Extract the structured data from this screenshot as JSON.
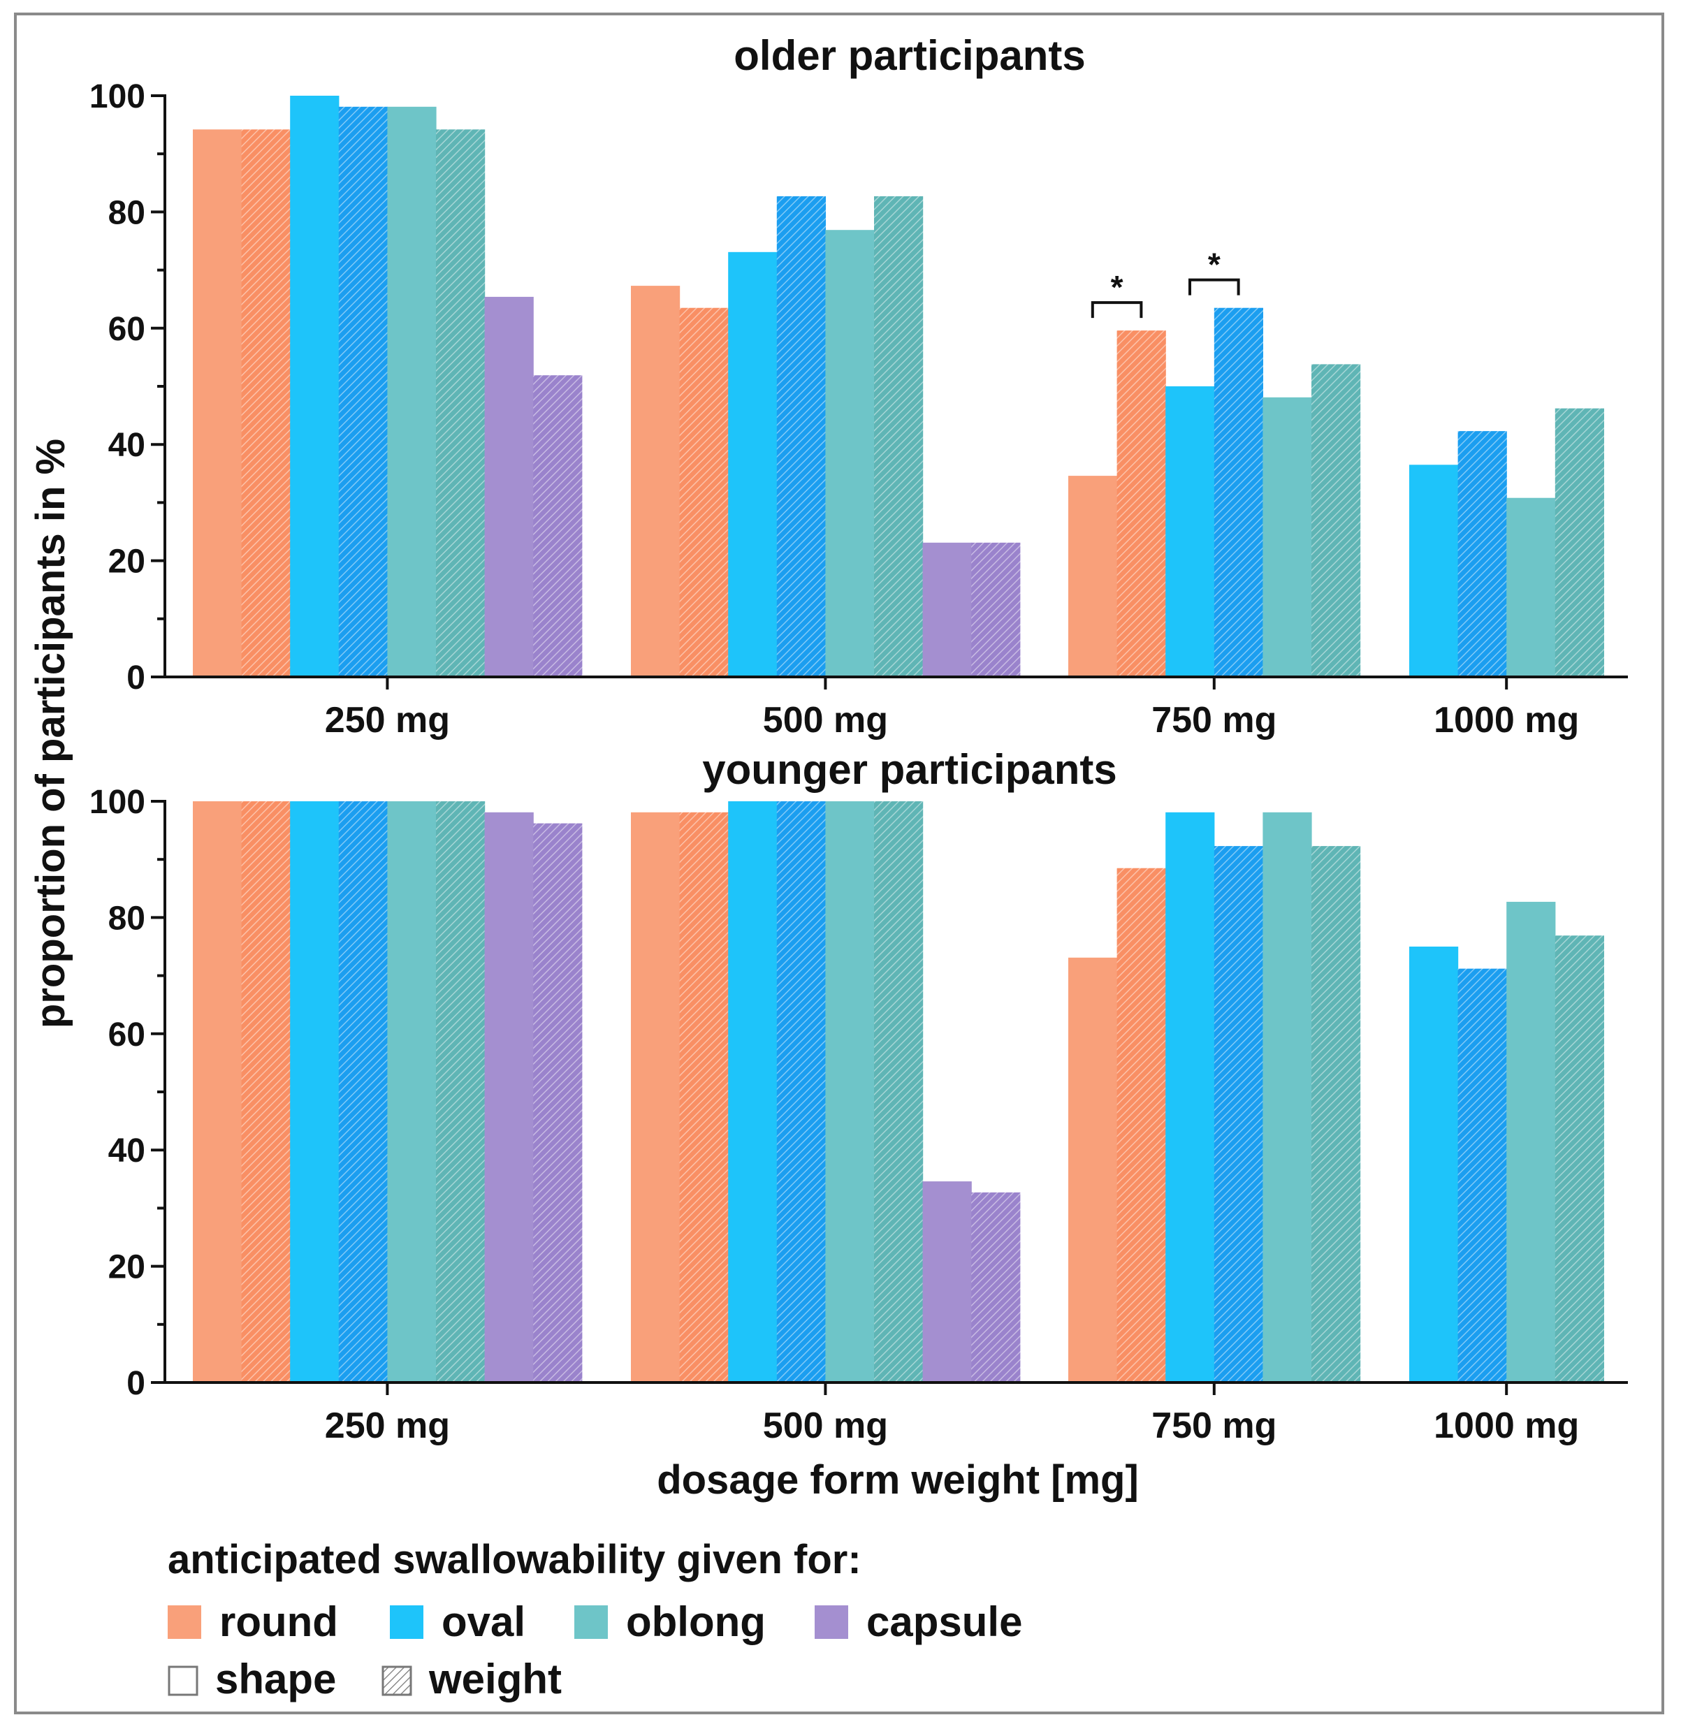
{
  "chart_data": {
    "type": "bar",
    "ylabel": "proportion of participants in %",
    "xlabel": "dosage form weight [mg]",
    "ylim": [
      0,
      100
    ],
    "yticks": [
      0,
      20,
      40,
      60,
      80,
      100
    ],
    "categories": [
      "250 mg",
      "500 mg",
      "750 mg",
      "1000 mg"
    ],
    "colors": {
      "round": "#f9a07a",
      "oval": "#1ec4fa",
      "oblong": "#6ec5c8",
      "capsule": "#a48fd0",
      "round_weight": "#f98f64",
      "oval_weight": "#1b9ef0",
      "oblong_weight": "#5fb5b5",
      "capsule_weight": "#9a83cc"
    },
    "panels": [
      {
        "title": "older participants",
        "groups": [
          {
            "category": "250 mg",
            "bars": [
              {
                "shape": "round",
                "basis": "shape",
                "value": 94.2
              },
              {
                "shape": "round",
                "basis": "weight",
                "value": 94.2
              },
              {
                "shape": "oval",
                "basis": "shape",
                "value": 100
              },
              {
                "shape": "oval",
                "basis": "weight",
                "value": 98.1
              },
              {
                "shape": "oblong",
                "basis": "shape",
                "value": 98.1
              },
              {
                "shape": "oblong",
                "basis": "weight",
                "value": 94.2
              },
              {
                "shape": "capsule",
                "basis": "shape",
                "value": 65.4
              },
              {
                "shape": "capsule",
                "basis": "weight",
                "value": 51.9
              }
            ]
          },
          {
            "category": "500 mg",
            "bars": [
              {
                "shape": "round",
                "basis": "shape",
                "value": 67.3
              },
              {
                "shape": "round",
                "basis": "weight",
                "value": 63.5
              },
              {
                "shape": "oval",
                "basis": "shape",
                "value": 73.1
              },
              {
                "shape": "oval",
                "basis": "weight",
                "value": 82.7
              },
              {
                "shape": "oblong",
                "basis": "shape",
                "value": 76.9
              },
              {
                "shape": "oblong",
                "basis": "weight",
                "value": 82.7
              },
              {
                "shape": "capsule",
                "basis": "shape",
                "value": 23.1
              },
              {
                "shape": "capsule",
                "basis": "weight",
                "value": 23.1
              }
            ]
          },
          {
            "category": "750 mg",
            "bars": [
              {
                "shape": "round",
                "basis": "shape",
                "value": 34.6
              },
              {
                "shape": "round",
                "basis": "weight",
                "value": 59.6
              },
              {
                "shape": "oval",
                "basis": "shape",
                "value": 50.0
              },
              {
                "shape": "oval",
                "basis": "weight",
                "value": 63.5
              },
              {
                "shape": "oblong",
                "basis": "shape",
                "value": 48.1
              },
              {
                "shape": "oblong",
                "basis": "weight",
                "value": 53.8
              }
            ]
          },
          {
            "category": "1000 mg",
            "bars": [
              {
                "shape": "oval",
                "basis": "shape",
                "value": 36.5
              },
              {
                "shape": "oval",
                "basis": "weight",
                "value": 42.3
              },
              {
                "shape": "oblong",
                "basis": "shape",
                "value": 30.8
              },
              {
                "shape": "oblong",
                "basis": "weight",
                "value": 46.2
              }
            ]
          }
        ],
        "annotations": [
          {
            "text": "*",
            "group": "750 mg",
            "from_bar": 0,
            "to_bar": 1
          },
          {
            "text": "*",
            "group": "750 mg",
            "from_bar": 2,
            "to_bar": 3
          }
        ]
      },
      {
        "title": "younger participants",
        "groups": [
          {
            "category": "250 mg",
            "bars": [
              {
                "shape": "round",
                "basis": "shape",
                "value": 100
              },
              {
                "shape": "round",
                "basis": "weight",
                "value": 100
              },
              {
                "shape": "oval",
                "basis": "shape",
                "value": 100
              },
              {
                "shape": "oval",
                "basis": "weight",
                "value": 100
              },
              {
                "shape": "oblong",
                "basis": "shape",
                "value": 100
              },
              {
                "shape": "oblong",
                "basis": "weight",
                "value": 100
              },
              {
                "shape": "capsule",
                "basis": "shape",
                "value": 98.1
              },
              {
                "shape": "capsule",
                "basis": "weight",
                "value": 96.2
              }
            ]
          },
          {
            "category": "500 mg",
            "bars": [
              {
                "shape": "round",
                "basis": "shape",
                "value": 98.1
              },
              {
                "shape": "round",
                "basis": "weight",
                "value": 98.1
              },
              {
                "shape": "oval",
                "basis": "shape",
                "value": 100
              },
              {
                "shape": "oval",
                "basis": "weight",
                "value": 100
              },
              {
                "shape": "oblong",
                "basis": "shape",
                "value": 100
              },
              {
                "shape": "oblong",
                "basis": "weight",
                "value": 100
              },
              {
                "shape": "capsule",
                "basis": "shape",
                "value": 34.6
              },
              {
                "shape": "capsule",
                "basis": "weight",
                "value": 32.7
              }
            ]
          },
          {
            "category": "750 mg",
            "bars": [
              {
                "shape": "round",
                "basis": "shape",
                "value": 73.1
              },
              {
                "shape": "round",
                "basis": "weight",
                "value": 88.5
              },
              {
                "shape": "oval",
                "basis": "shape",
                "value": 98.1
              },
              {
                "shape": "oval",
                "basis": "weight",
                "value": 92.3
              },
              {
                "shape": "oblong",
                "basis": "shape",
                "value": 98.1
              },
              {
                "shape": "oblong",
                "basis": "weight",
                "value": 92.3
              }
            ]
          },
          {
            "category": "1000 mg",
            "bars": [
              {
                "shape": "oval",
                "basis": "shape",
                "value": 75.0
              },
              {
                "shape": "oval",
                "basis": "weight",
                "value": 71.2
              },
              {
                "shape": "oblong",
                "basis": "shape",
                "value": 82.7
              },
              {
                "shape": "oblong",
                "basis": "weight",
                "value": 76.9
              }
            ]
          }
        ],
        "annotations": []
      }
    ],
    "legend": {
      "title": "anticipated swallowability given for:",
      "shapes": [
        {
          "key": "round",
          "label": "round"
        },
        {
          "key": "oval",
          "label": "oval"
        },
        {
          "key": "oblong",
          "label": "oblong"
        },
        {
          "key": "capsule",
          "label": "capsule"
        }
      ],
      "basis": [
        {
          "key": "shape",
          "label": "shape"
        },
        {
          "key": "weight",
          "label": "weight"
        }
      ],
      "placement": "bottom-left"
    }
  }
}
